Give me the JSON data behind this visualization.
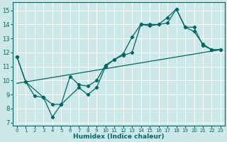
{
  "xlabel": "Humidex (Indice chaleur)",
  "bg_color": "#cce8e8",
  "grid_color": "#ffffff",
  "line_color": "#006666",
  "xlim": [
    -0.5,
    23.5
  ],
  "ylim": [
    6.8,
    15.6
  ],
  "yticks": [
    7,
    8,
    9,
    10,
    11,
    12,
    13,
    14,
    15
  ],
  "xticks": [
    0,
    1,
    2,
    3,
    4,
    5,
    6,
    7,
    8,
    9,
    10,
    11,
    12,
    13,
    14,
    15,
    16,
    17,
    18,
    19,
    20,
    21,
    22,
    23
  ],
  "trend_x": [
    0,
    23
  ],
  "trend_y": [
    9.8,
    12.2
  ],
  "series1_x": [
    0,
    1,
    2,
    3,
    4,
    5,
    6,
    7,
    8,
    9,
    10,
    11,
    12,
    13,
    14,
    15,
    16,
    17,
    18,
    19,
    20,
    21,
    22,
    23
  ],
  "series1_y": [
    11.7,
    9.9,
    8.9,
    8.8,
    7.4,
    8.3,
    10.3,
    9.7,
    9.6,
    10.0,
    11.1,
    11.5,
    11.9,
    13.1,
    14.0,
    13.9,
    14.0,
    14.5,
    15.1,
    13.8,
    13.5,
    12.6,
    12.2,
    12.2
  ],
  "series2_x": [
    0,
    1,
    3,
    4,
    5,
    7,
    8,
    9,
    10,
    11,
    12,
    13,
    14,
    15,
    16,
    17,
    18,
    19,
    20,
    21,
    22,
    23
  ],
  "series2_y": [
    11.7,
    9.9,
    8.8,
    8.3,
    8.3,
    9.5,
    9.0,
    9.5,
    11.0,
    11.5,
    11.8,
    12.0,
    14.0,
    14.0,
    14.0,
    14.1,
    15.1,
    13.8,
    13.8,
    12.5,
    12.2,
    12.2
  ]
}
